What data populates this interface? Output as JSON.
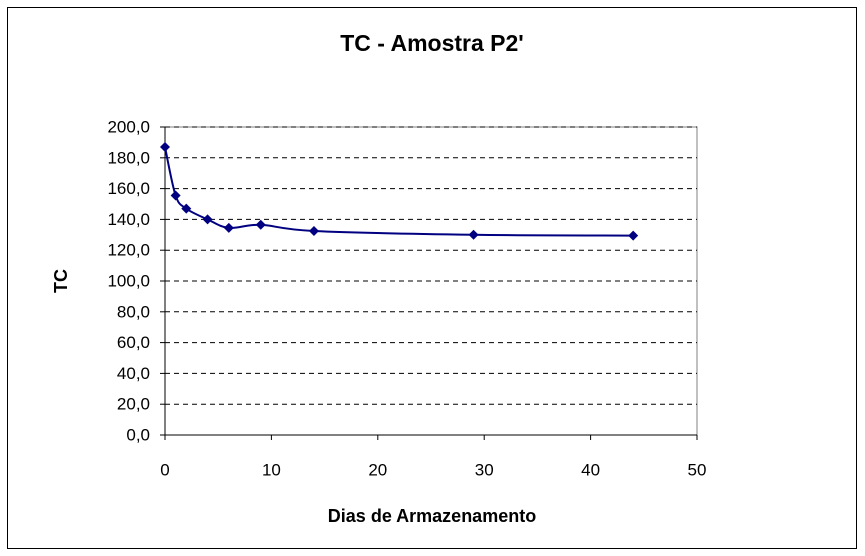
{
  "chart_data": {
    "type": "line",
    "title": "TC - Amostra P2'",
    "x_label": "Dias de Armazenamento",
    "y_label": "TC",
    "x": [
      0,
      1,
      2,
      4,
      6,
      9,
      14,
      29,
      44
    ],
    "values": [
      187,
      155.5,
      147,
      140,
      134.5,
      136.5,
      132.5,
      130,
      129.5
    ],
    "color": "#000080",
    "smooth": true,
    "marker": "diamond",
    "xlim": [
      0,
      50
    ],
    "xticks": [
      0,
      10,
      20,
      30,
      40,
      50
    ],
    "ylim": [
      0,
      200
    ],
    "yticks": [
      {
        "value": 0,
        "label": "0,0"
      },
      {
        "value": 20,
        "label": "20,0"
      },
      {
        "value": 40,
        "label": "40,0"
      },
      {
        "value": 60,
        "label": "60,0"
      },
      {
        "value": 80,
        "label": "80,0"
      },
      {
        "value": 100,
        "label": "100,0"
      },
      {
        "value": 120,
        "label": "120,0"
      },
      {
        "value": 140,
        "label": "140,0"
      },
      {
        "value": 160,
        "label": "160,0"
      },
      {
        "value": 180,
        "label": "180,0"
      },
      {
        "value": 200,
        "label": "200,0"
      }
    ],
    "grid": true
  }
}
